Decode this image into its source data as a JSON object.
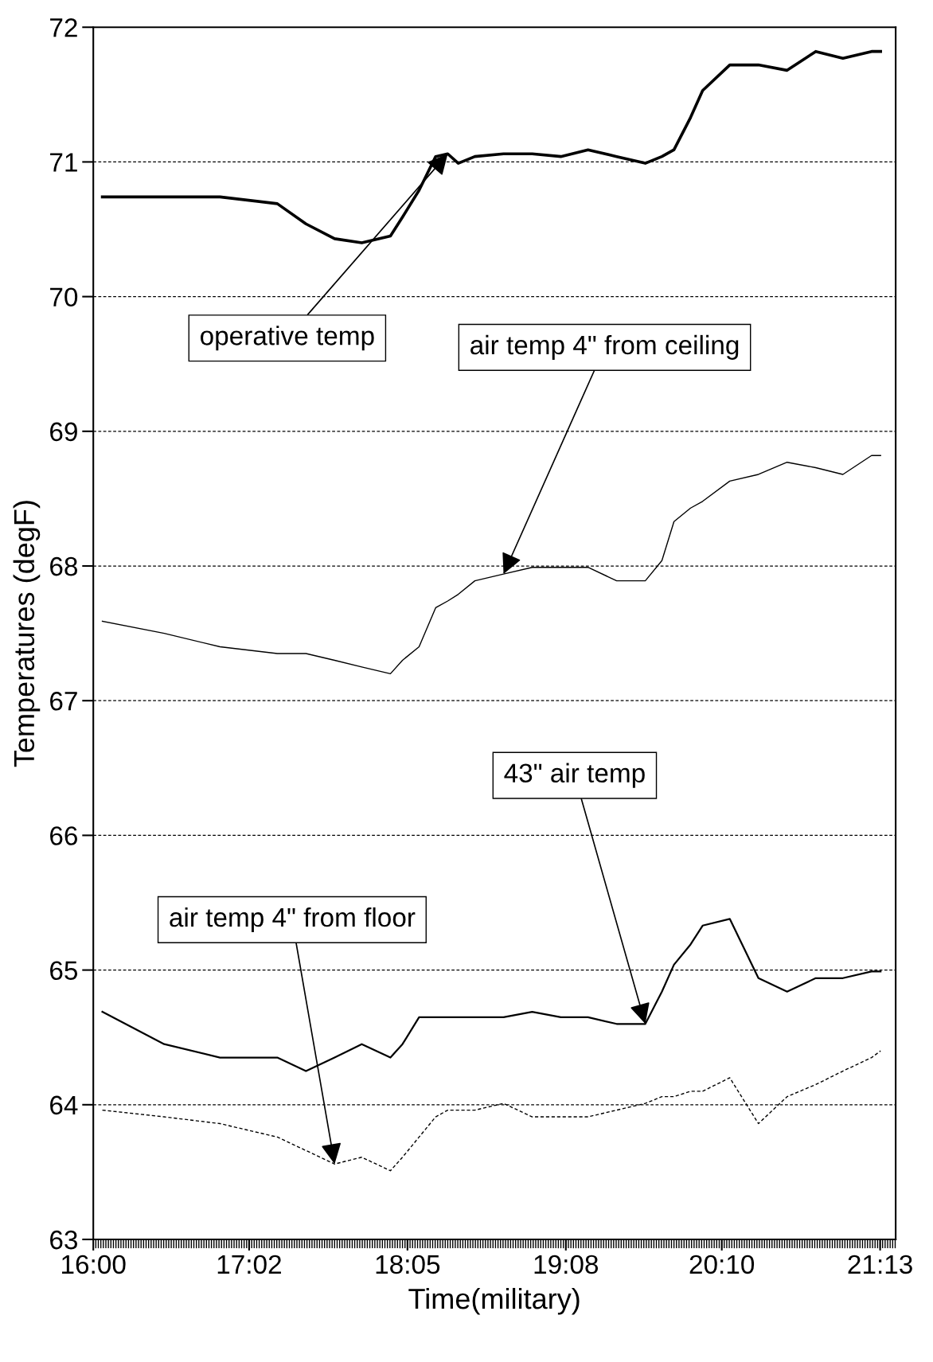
{
  "chart_data": {
    "type": "line",
    "xlabel": "Time(military)",
    "ylabel": "Temperatures (degF)",
    "x": [
      16.06,
      16.47,
      16.84,
      17.22,
      17.41,
      17.6,
      17.78,
      17.97,
      18.05,
      18.16,
      18.27,
      18.35,
      18.42,
      18.53,
      18.72,
      18.91,
      19.1,
      19.28,
      19.47,
      19.66,
      19.77,
      19.85,
      19.96,
      20.04,
      20.22,
      20.41,
      20.6,
      20.79,
      20.97,
      21.16,
      21.22
    ],
    "series": [
      {
        "color": "#000000",
        "line_style": "solid",
        "values": [
          70.74,
          70.74,
          70.74,
          70.69,
          70.54,
          70.43,
          70.4,
          70.45,
          70.59,
          70.79,
          71.04,
          71.06,
          70.99,
          71.04,
          71.06,
          71.06,
          71.04,
          71.09,
          71.04,
          70.99,
          71.04,
          71.09,
          71.33,
          71.53,
          71.72,
          71.72,
          71.68,
          71.82,
          71.77,
          71.82,
          71.82
        ]
      },
      {
        "color": "#000000",
        "line_style": "solid",
        "values": [
          67.59,
          67.5,
          67.4,
          67.35,
          67.35,
          67.3,
          67.25,
          67.2,
          67.3,
          67.4,
          67.69,
          67.74,
          67.79,
          67.89,
          67.94,
          67.99,
          67.99,
          67.99,
          67.89,
          67.89,
          68.04,
          68.33,
          68.43,
          68.48,
          68.63,
          68.68,
          68.77,
          68.73,
          68.68,
          68.82,
          68.82
        ]
      },
      {
        "color": "#000000",
        "line_style": "solid",
        "values": [
          64.69,
          64.45,
          64.35,
          64.35,
          64.25,
          64.35,
          64.45,
          64.35,
          64.45,
          64.65,
          64.65,
          64.65,
          64.65,
          64.65,
          64.65,
          64.69,
          64.65,
          64.65,
          64.6,
          64.6,
          64.84,
          65.04,
          65.19,
          65.33,
          65.38,
          64.94,
          64.84,
          64.94,
          64.94,
          64.99,
          64.99
        ]
      },
      {
        "color": "#000000",
        "line_style": "dashed",
        "values": [
          63.96,
          63.91,
          63.86,
          63.76,
          63.66,
          63.56,
          63.61,
          63.51,
          63.61,
          63.76,
          63.91,
          63.96,
          63.96,
          63.96,
          64.01,
          63.91,
          63.91,
          63.91,
          63.96,
          64.01,
          64.06,
          64.06,
          64.1,
          64.1,
          64.2,
          63.86,
          64.06,
          64.15,
          64.25,
          64.35,
          64.4
        ]
      }
    ],
    "xlim": [
      16,
      21.32
    ],
    "xticks": [
      {
        "value": 16,
        "label": "16:00"
      },
      {
        "value": 17.033,
        "label": "17:02"
      },
      {
        "value": 18.083,
        "label": "18:05"
      },
      {
        "value": 19.133,
        "label": "19:08"
      },
      {
        "value": 20.167,
        "label": "20:10"
      },
      {
        "value": 21.217,
        "label": "21:13"
      }
    ],
    "ylim": [
      63,
      72
    ],
    "yticks": [
      63,
      64,
      65,
      66,
      67,
      68,
      69,
      70,
      71,
      72
    ],
    "grid": "y",
    "legend": false,
    "annotations": [
      {
        "text": "operative temp",
        "x": 18.35,
        "y": 71.06
      },
      {
        "text": "air temp 4\" from ceiling",
        "x": 18.72,
        "y": 67.94
      },
      {
        "text": "43\" air temp",
        "x": 19.66,
        "y": 64.6
      },
      {
        "text": "air temp 4\" from floor",
        "x": 17.6,
        "y": 63.56
      }
    ]
  }
}
